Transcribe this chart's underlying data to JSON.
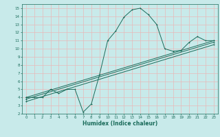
{
  "xlabel": "Humidex (Indice chaleur)",
  "bg_color": "#c8eaea",
  "grid_color": "#e8b8b8",
  "line_color": "#1a6b5a",
  "xlim": [
    -0.5,
    23.5
  ],
  "ylim": [
    2,
    15.5
  ],
  "xticks": [
    0,
    1,
    2,
    3,
    4,
    5,
    6,
    7,
    8,
    9,
    10,
    11,
    12,
    13,
    14,
    15,
    16,
    17,
    18,
    19,
    20,
    21,
    22,
    23
  ],
  "yticks": [
    2,
    3,
    4,
    5,
    6,
    7,
    8,
    9,
    10,
    11,
    12,
    13,
    14,
    15
  ],
  "curve1_x": [
    0,
    1,
    2,
    3,
    4,
    5,
    6,
    7,
    8,
    9,
    10,
    11,
    12,
    13,
    14,
    15,
    16,
    17,
    18,
    19,
    20,
    21,
    22,
    23
  ],
  "curve1_y": [
    4,
    4,
    4,
    5,
    4.5,
    5,
    5,
    2.2,
    3.2,
    6.8,
    11,
    12.2,
    13.9,
    14.8,
    15,
    14.2,
    13,
    10,
    9.7,
    9.8,
    10.8,
    11.5,
    11,
    11
  ],
  "curve2_x": [
    0,
    23
  ],
  "curve2_y": [
    4,
    11
  ],
  "curve3_x": [
    0,
    23
  ],
  "curve3_y": [
    3.8,
    10.8
  ],
  "curve4_x": [
    0,
    23
  ],
  "curve4_y": [
    3.5,
    10.5
  ],
  "figsize": [
    3.2,
    2.0
  ],
  "dpi": 100
}
